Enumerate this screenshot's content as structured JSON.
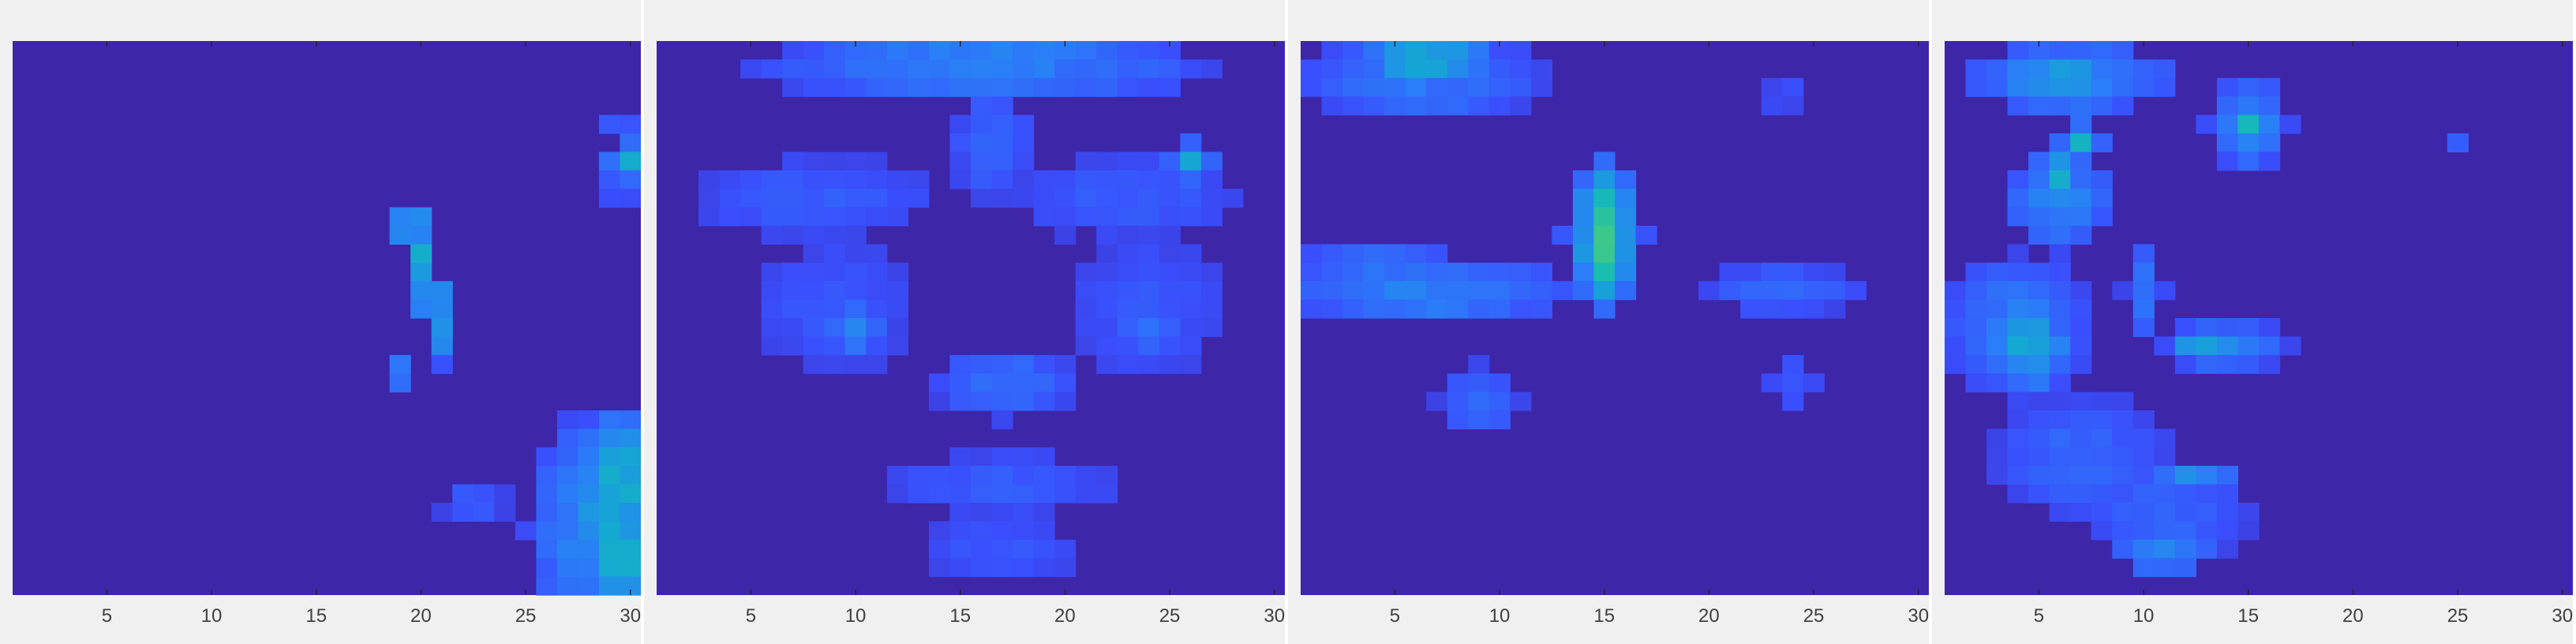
{
  "chart_data": [
    {
      "type": "heatmap",
      "xticks": [
        "5",
        "10",
        "15",
        "20",
        "25",
        "30"
      ],
      "xlim": [
        0.5,
        30.5
      ],
      "ylim": [
        0.5,
        30.5
      ],
      "colormap": [
        "#3e26a8",
        "#3a4efd",
        "#2a7ff7",
        "#14a8d2",
        "#17bdb1",
        "#42c985",
        "#94c44d"
      ],
      "grid": false,
      "features": [
        {
          "x": 19.5,
          "y": 10.5,
          "w": 1,
          "h": 2,
          "v": 0.5
        },
        {
          "x": 20,
          "y": 12.5,
          "w": 1,
          "h": 3,
          "v": 0.58
        },
        {
          "x": 20.5,
          "y": 14.5,
          "w": 1,
          "h": 2,
          "v": 0.48
        },
        {
          "x": 21,
          "y": 16.5,
          "w": 1,
          "h": 2,
          "v": 0.45
        },
        {
          "x": 19,
          "y": 18.5,
          "w": 1,
          "h": 1,
          "v": 0.36
        },
        {
          "x": 22.5,
          "y": 25.5,
          "w": 3,
          "h": 1,
          "v": 0.26
        },
        {
          "x": 30,
          "y": 7,
          "w": 1,
          "h": 1,
          "v": 0.62
        },
        {
          "x": 29.5,
          "y": 5,
          "w": 1,
          "h": 1,
          "v": 0.28
        },
        {
          "x": 29.5,
          "y": 8.5,
          "w": 1,
          "h": 1,
          "v": 0.28
        },
        {
          "x": 28,
          "y": 27,
          "w": 5,
          "h": 12,
          "v": 0.38
        },
        {
          "x": 29,
          "y": 26,
          "w": 3,
          "h": 10,
          "v": 0.54
        },
        {
          "x": 29.5,
          "y": 24,
          "w": 2,
          "h": 6,
          "v": 0.62
        },
        {
          "x": 29.5,
          "y": 28.5,
          "w": 2,
          "h": 5,
          "v": 0.58
        }
      ]
    },
    {
      "type": "heatmap",
      "xticks": [
        "5",
        "10",
        "15",
        "20",
        "25",
        "30"
      ],
      "xlim": [
        0.5,
        30.5
      ],
      "ylim": [
        0.5,
        30.5
      ],
      "colormap": [
        "#3e26a8",
        "#3a4efd",
        "#2a7ff7",
        "#14a8d2",
        "#17bdb1",
        "#42c985",
        "#94c44d"
      ],
      "grid": false,
      "features": [
        {
          "x": 16,
          "y": 2,
          "w": 22,
          "h": 3,
          "v": 0.34
        },
        {
          "x": 16,
          "y": 1.5,
          "w": 16,
          "h": 2,
          "v": 0.4
        },
        {
          "x": 16.5,
          "y": 6,
          "w": 3,
          "h": 6,
          "v": 0.28
        },
        {
          "x": 8,
          "y": 9,
          "w": 12,
          "h": 4,
          "v": 0.24
        },
        {
          "x": 23,
          "y": 9,
          "w": 12,
          "h": 4,
          "v": 0.24
        },
        {
          "x": 26,
          "y": 7,
          "w": 1,
          "h": 1,
          "v": 0.6
        },
        {
          "x": 9,
          "y": 15,
          "w": 8,
          "h": 8,
          "v": 0.22
        },
        {
          "x": 24,
          "y": 15,
          "w": 8,
          "h": 8,
          "v": 0.22
        },
        {
          "x": 10,
          "y": 16,
          "w": 2,
          "h": 2,
          "v": 0.4
        },
        {
          "x": 24,
          "y": 16,
          "w": 2,
          "h": 2,
          "v": 0.34
        },
        {
          "x": 17,
          "y": 19,
          "w": 6,
          "h": 3,
          "v": 0.32
        },
        {
          "x": 17,
          "y": 24.5,
          "w": 12,
          "h": 3,
          "v": 0.24
        },
        {
          "x": 17,
          "y": 28,
          "w": 8,
          "h": 3,
          "v": 0.22
        }
      ]
    },
    {
      "type": "heatmap",
      "xticks": [
        "5",
        "10",
        "15",
        "20",
        "25",
        "30"
      ],
      "xlim": [
        0.5,
        30.5
      ],
      "ylim": [
        0.5,
        30.5
      ],
      "colormap": [
        "#3e26a8",
        "#3a4efd",
        "#2a7ff7",
        "#14a8d2",
        "#17bdb1",
        "#42c985",
        "#94c44d"
      ],
      "grid": false,
      "features": [
        {
          "x": 6.5,
          "y": 2.5,
          "w": 11,
          "h": 4,
          "v": 0.34
        },
        {
          "x": 6.5,
          "y": 1.5,
          "w": 5,
          "h": 2,
          "v": 0.56
        },
        {
          "x": 23.5,
          "y": 3.5,
          "w": 3,
          "h": 1,
          "v": 0.2
        },
        {
          "x": 15,
          "y": 11,
          "w": 3,
          "h": 8,
          "v": 0.52
        },
        {
          "x": 15,
          "y": 11,
          "w": 1,
          "h": 6,
          "v": 0.84
        },
        {
          "x": 6.5,
          "y": 14,
          "w": 13,
          "h": 3,
          "v": 0.38
        },
        {
          "x": 4,
          "y": 12.5,
          "w": 7,
          "h": 2,
          "v": 0.3
        },
        {
          "x": 23.5,
          "y": 14,
          "w": 7,
          "h": 2,
          "v": 0.28
        },
        {
          "x": 9,
          "y": 20,
          "w": 3,
          "h": 3,
          "v": 0.3
        },
        {
          "x": 24,
          "y": 19,
          "w": 2,
          "h": 2,
          "v": 0.24
        }
      ]
    },
    {
      "type": "heatmap",
      "xticks": [
        "5",
        "10",
        "15",
        "20",
        "25",
        "30"
      ],
      "xlim": [
        0.5,
        30.5
      ],
      "ylim": [
        0.5,
        30.5
      ],
      "colormap": [
        "#3e26a8",
        "#3a4efd",
        "#2a7ff7",
        "#14a8d2",
        "#17bdb1",
        "#42c985",
        "#94c44d"
      ],
      "grid": false,
      "features": [
        {
          "x": 6.5,
          "y": 2.5,
          "w": 9,
          "h": 3,
          "v": 0.42
        },
        {
          "x": 6,
          "y": 2.5,
          "w": 3,
          "h": 1,
          "v": 0.6
        },
        {
          "x": 7,
          "y": 6,
          "w": 1,
          "h": 1,
          "v": 0.66
        },
        {
          "x": 6,
          "y": 9,
          "w": 4,
          "h": 5,
          "v": 0.4
        },
        {
          "x": 6,
          "y": 8,
          "w": 1,
          "h": 2,
          "v": 0.6
        },
        {
          "x": 15,
          "y": 5,
          "w": 3,
          "h": 4,
          "v": 0.4
        },
        {
          "x": 15,
          "y": 5,
          "w": 1,
          "h": 1,
          "v": 0.7
        },
        {
          "x": 4,
          "y": 16,
          "w": 6,
          "h": 7,
          "v": 0.36
        },
        {
          "x": 4.5,
          "y": 17,
          "w": 3,
          "h": 4,
          "v": 0.52
        },
        {
          "x": 10,
          "y": 14,
          "w": 1,
          "h": 4,
          "v": 0.34
        },
        {
          "x": 14,
          "y": 17,
          "w": 5,
          "h": 2,
          "v": 0.36
        },
        {
          "x": 13,
          "y": 17,
          "w": 2,
          "h": 1,
          "v": 0.56
        },
        {
          "x": 7,
          "y": 23,
          "w": 8,
          "h": 6,
          "v": 0.28
        },
        {
          "x": 11,
          "y": 26,
          "w": 8,
          "h": 5,
          "v": 0.26
        },
        {
          "x": 12.5,
          "y": 24,
          "w": 3,
          "h": 1,
          "v": 0.44
        },
        {
          "x": 11,
          "y": 28,
          "w": 4,
          "h": 2,
          "v": 0.4
        },
        {
          "x": 25,
          "y": 6,
          "w": 1,
          "h": 1,
          "v": 0.26
        }
      ]
    }
  ]
}
